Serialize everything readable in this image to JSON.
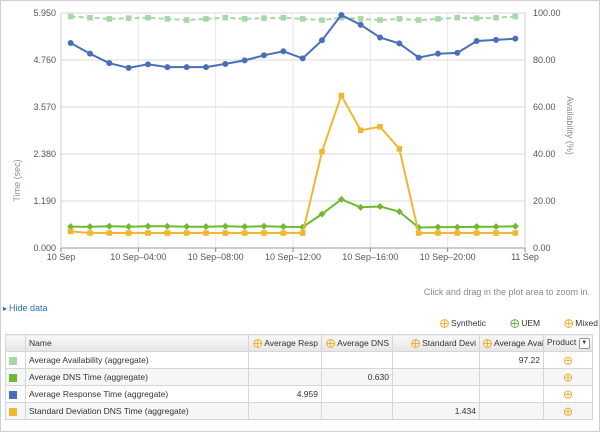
{
  "chart_data": {
    "type": "line",
    "x": [
      "10 Sep 00:00",
      "10 Sep 01:00",
      "10 Sep 02:00",
      "10 Sep 03:00",
      "10 Sep 04:00",
      "10 Sep 05:00",
      "10 Sep 06:00",
      "10 Sep 07:00",
      "10 Sep 08:00",
      "10 Sep 09:00",
      "10 Sep 10:00",
      "10 Sep 11:00",
      "10 Sep 12:00",
      "10 Sep 13:00",
      "10 Sep 14:00",
      "10 Sep 15:00",
      "10 Sep 16:00",
      "10 Sep 17:00",
      "10 Sep 18:00",
      "10 Sep 19:00",
      "10 Sep 20:00",
      "10 Sep 21:00",
      "10 Sep 22:00",
      "10 Sep 23:00"
    ],
    "x_tick_labels": [
      "10 Sep",
      "10 Sep–04:00",
      "10 Sep–08:00",
      "10 Sep–12:00",
      "10 Sep–16:00",
      "10 Sep–20:00",
      "11 Sep"
    ],
    "ylabel": "Time (sec)",
    "ylabel_right": "Availability (%)",
    "ylim": [
      0,
      5.95
    ],
    "y_ticks": [
      "0.000",
      "1.190",
      "2.380",
      "3.570",
      "4.760",
      "5.950"
    ],
    "ylim_right": [
      0,
      100
    ],
    "y_ticks_right": [
      "0.00",
      "20.00",
      "40.00",
      "60.00",
      "80.00",
      "100.00"
    ],
    "grid": true,
    "series": [
      {
        "name": "Average Availability (aggregate)",
        "axis": "right",
        "color": "#a8d8a8",
        "dashed": true,
        "marker": "square",
        "values": [
          98.5,
          98,
          97.5,
          97.8,
          98,
          97.5,
          97,
          97.5,
          98,
          97.5,
          97.8,
          98,
          97.5,
          97,
          98,
          97.5,
          97,
          97.5,
          97,
          97.5,
          98,
          97.8,
          98,
          98.5
        ]
      },
      {
        "name": "Average DNS Time (aggregate)",
        "axis": "left",
        "color": "#72b832",
        "marker": "diamond",
        "values": [
          0.54,
          0.54,
          0.55,
          0.54,
          0.55,
          0.55,
          0.54,
          0.54,
          0.55,
          0.54,
          0.55,
          0.54,
          0.53,
          0.86,
          1.23,
          1.03,
          1.05,
          0.92,
          0.52,
          0.53,
          0.53,
          0.54,
          0.54,
          0.55
        ]
      },
      {
        "name": "Average Response Time (aggregate)",
        "axis": "left",
        "color": "#4a6fba",
        "marker": "circle",
        "values": [
          5.19,
          4.92,
          4.68,
          4.56,
          4.65,
          4.58,
          4.58,
          4.58,
          4.66,
          4.75,
          4.88,
          4.98,
          4.8,
          5.26,
          5.9,
          5.65,
          5.33,
          5.18,
          4.82,
          4.92,
          4.94,
          5.24,
          5.27,
          5.3
        ]
      },
      {
        "name": "Standard Deviation DNS Time (aggregate)",
        "axis": "left",
        "color": "#f0b830",
        "marker": "square",
        "values": [
          0.42,
          0.38,
          0.38,
          0.38,
          0.38,
          0.38,
          0.38,
          0.38,
          0.38,
          0.38,
          0.38,
          0.38,
          0.38,
          2.44,
          3.86,
          2.98,
          3.07,
          2.51,
          0.38,
          0.38,
          0.38,
          0.38,
          0.38,
          0.38
        ]
      }
    ]
  },
  "hint": "Click and drag in the plot area to zoom in.",
  "hide_data_label": "Hide data",
  "legend": {
    "synthetic": "Synthetic",
    "uem": "UEM",
    "mixed": "Mixed"
  },
  "table": {
    "headers": {
      "name": "Name",
      "avg_resp": "Average Resp",
      "avg_dns": "Average DNS",
      "std_dev": "Standard Devi",
      "avg_avail": "Average Avail",
      "product": "Product"
    },
    "rows": [
      {
        "name": "Average Availability (aggregate)",
        "color": "#a8d8a8",
        "avg_resp": "",
        "avg_dns": "",
        "std_dev": "",
        "avg_avail": "97.22"
      },
      {
        "name": "Average DNS Time (aggregate)",
        "color": "#72b832",
        "avg_resp": "",
        "avg_dns": "0.630",
        "std_dev": "",
        "avg_avail": ""
      },
      {
        "name": "Average Response Time (aggregate)",
        "color": "#4a6fba",
        "avg_resp": "4.959",
        "avg_dns": "",
        "std_dev": "",
        "avg_avail": ""
      },
      {
        "name": "Standard Deviation DNS Time (aggregate)",
        "color": "#f0b830",
        "avg_resp": "",
        "avg_dns": "",
        "std_dev": "1.434",
        "avg_avail": ""
      }
    ]
  }
}
